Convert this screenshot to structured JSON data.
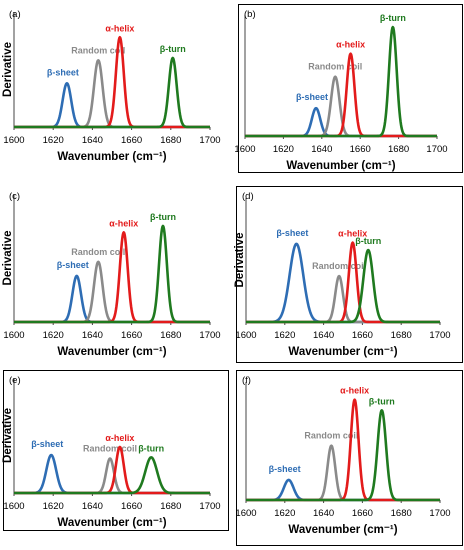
{
  "colors": {
    "beta_sheet": "#2e6db4",
    "random_coil": "#8a8a8a",
    "alpha_helix": "#e31b1b",
    "beta_turn": "#1f7a1f"
  },
  "chart_data": [
    {
      "type": "line",
      "panel_label": "(a)",
      "boxed": false,
      "xlabel": "Wavenumber (cm⁻¹)",
      "ylabel": "Derivative",
      "xlim": [
        1600,
        1700
      ],
      "ylim": [
        0,
        1
      ],
      "xticks": [
        1600,
        1620,
        1640,
        1660,
        1680,
        1700
      ],
      "series": [
        {
          "key": "beta_sheet",
          "label": "β-sheet",
          "center": 1627,
          "height": 0.38,
          "width": 2.2
        },
        {
          "key": "random_coil",
          "label": "Random coil",
          "center": 1643,
          "height": 0.58,
          "width": 2.2
        },
        {
          "key": "alpha_helix",
          "label": "α-helix",
          "center": 1654,
          "height": 0.78,
          "width": 2.0
        },
        {
          "key": "beta_turn",
          "label": "β-turn",
          "center": 1681,
          "height": 0.6,
          "width": 2.0
        }
      ]
    },
    {
      "type": "line",
      "panel_label": "(b)",
      "boxed": true,
      "xlabel": "Wavenumber (cm⁻¹)",
      "ylabel": "",
      "xlim": [
        1600,
        1700
      ],
      "ylim": [
        0,
        1
      ],
      "xticks": [
        1600,
        1620,
        1640,
        1660,
        1680,
        1700
      ],
      "series": [
        {
          "key": "beta_sheet",
          "label": "β-sheet",
          "center": 1637,
          "height": 0.23,
          "width": 2.2
        },
        {
          "key": "random_coil",
          "label": "Random coil",
          "center": 1647,
          "height": 0.49,
          "width": 2.2
        },
        {
          "key": "alpha_helix",
          "label": "α-helix",
          "center": 1655,
          "height": 0.68,
          "width": 2.0
        },
        {
          "key": "beta_turn",
          "label": "β-turn",
          "center": 1677,
          "height": 0.9,
          "width": 2.0
        }
      ]
    },
    {
      "type": "line",
      "panel_label": "(c)",
      "boxed": false,
      "xlabel": "Wavenumber (cm⁻¹)",
      "ylabel": "Derivative",
      "xlim": [
        1600,
        1700
      ],
      "ylim": [
        0,
        1
      ],
      "xticks": [
        1600,
        1620,
        1640,
        1660,
        1680,
        1700
      ],
      "series": [
        {
          "key": "beta_sheet",
          "label": "β-sheet",
          "center": 1632,
          "height": 0.36,
          "width": 2.2
        },
        {
          "key": "random_coil",
          "label": "Random coil",
          "center": 1643,
          "height": 0.47,
          "width": 2.2
        },
        {
          "key": "alpha_helix",
          "label": "α-helix",
          "center": 1656,
          "height": 0.7,
          "width": 2.0
        },
        {
          "key": "beta_turn",
          "label": "β-turn",
          "center": 1676,
          "height": 0.75,
          "width": 2.0
        }
      ]
    },
    {
      "type": "line",
      "panel_label": "(d)",
      "boxed": true,
      "xlabel": "Wavenumber (cm⁻¹)",
      "ylabel": "Derivative",
      "xlim": [
        1600,
        1700
      ],
      "ylim": [
        0,
        1
      ],
      "xticks": [
        1600,
        1620,
        1640,
        1660,
        1680,
        1700
      ],
      "series": [
        {
          "key": "beta_sheet",
          "label": "β-sheet",
          "center": 1626,
          "height": 0.63,
          "width": 3.5
        },
        {
          "key": "random_coil",
          "label": "Random coil",
          "center": 1648,
          "height": 0.37,
          "width": 2.0
        },
        {
          "key": "alpha_helix",
          "label": "α-helix",
          "center": 1655,
          "height": 0.64,
          "width": 2.0
        },
        {
          "key": "beta_turn",
          "label": "β-turn",
          "center": 1663,
          "height": 0.58,
          "width": 2.5
        }
      ]
    },
    {
      "type": "line",
      "panel_label": "(e)",
      "boxed": true,
      "xlabel": "Wavenumber (cm⁻¹)",
      "ylabel": "Derivative",
      "xlim": [
        1600,
        1700
      ],
      "ylim": [
        0,
        1
      ],
      "xticks": [
        1600,
        1620,
        1640,
        1660,
        1680,
        1700
      ],
      "series": [
        {
          "key": "beta_sheet",
          "label": "β-sheet",
          "center": 1619,
          "height": 0.33,
          "width": 2.5
        },
        {
          "key": "random_coil",
          "label": "Random coil",
          "center": 1649,
          "height": 0.3,
          "width": 2.0
        },
        {
          "key": "alpha_helix",
          "label": "α-helix",
          "center": 1654,
          "height": 0.4,
          "width": 2.0
        },
        {
          "key": "beta_turn",
          "label": "β-turn",
          "center": 1670,
          "height": 0.31,
          "width": 3.0
        }
      ]
    },
    {
      "type": "line",
      "panel_label": "(f)",
      "boxed": true,
      "xlabel": "Wavenumber (cm⁻¹)",
      "ylabel": "",
      "xlim": [
        1600,
        1700
      ],
      "ylim": [
        0,
        1
      ],
      "xticks": [
        1600,
        1620,
        1640,
        1660,
        1680,
        1700
      ],
      "series": [
        {
          "key": "beta_sheet",
          "label": "β-sheet",
          "center": 1622,
          "height": 0.17,
          "width": 2.5
        },
        {
          "key": "random_coil",
          "label": "Random coil",
          "center": 1644,
          "height": 0.46,
          "width": 2.0
        },
        {
          "key": "alpha_helix",
          "label": "α-helix",
          "center": 1656,
          "height": 0.85,
          "width": 2.0
        },
        {
          "key": "beta_turn",
          "label": "β-turn",
          "center": 1670,
          "height": 0.76,
          "width": 2.2
        }
      ]
    }
  ]
}
